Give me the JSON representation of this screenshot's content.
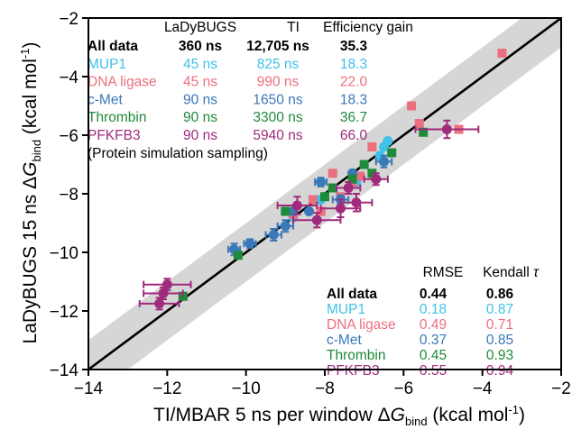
{
  "chart_data": {
    "type": "scatter",
    "xlabel": "TI/MBAR 5 ns per window ΔG_bind (kcal mol-1)",
    "ylabel": "LaDyBUGS 15 ns ΔG_bind (kcal mol-1)",
    "xlim": [
      -14,
      -2
    ],
    "ylim": [
      -14,
      -2
    ],
    "xticks": [
      -14,
      -12,
      -10,
      -8,
      -6,
      -4,
      -2
    ],
    "yticks": [
      -14,
      -12,
      -10,
      -8,
      -6,
      -4,
      -2
    ],
    "xtick_labels": [
      "−14",
      "−12",
      "−10",
      "−8",
      "−6",
      "−4",
      "−2"
    ],
    "ytick_labels": [
      "−14",
      "−12",
      "−10",
      "−8",
      "−6",
      "−4",
      "−2"
    ],
    "grid": false,
    "identity_line": true,
    "band_halfwidth_kcal": 1,
    "colors": {
      "MUP1": "#3fc1e8",
      "DNA ligase": "#ec6f7e",
      "c-Met": "#3a78b8",
      "Thrombin": "#1f8a3b",
      "PFKFB3": "#a02a7c",
      "band": "#d6d6d6",
      "line": "#000000"
    },
    "series": [
      {
        "name": "MUP1",
        "marker": "circle",
        "points": [
          {
            "x": -6.4,
            "y": -6.2
          },
          {
            "x": -6.5,
            "y": -6.4
          },
          {
            "x": -6.6,
            "y": -6.7
          },
          {
            "x": -7.2,
            "y": -7.6
          },
          {
            "x": -8.1,
            "y": -8.2
          },
          {
            "x": -8.8,
            "y": -8.8
          }
        ]
      },
      {
        "name": "DNA ligase",
        "marker": "square",
        "points": [
          {
            "x": -3.5,
            "y": -3.2
          },
          {
            "x": -4.6,
            "y": -5.8
          },
          {
            "x": -5.8,
            "y": -5.0
          },
          {
            "x": -5.6,
            "y": -5.6
          },
          {
            "x": -6.8,
            "y": -6.4
          },
          {
            "x": -7.8,
            "y": -7.3
          },
          {
            "x": -7.3,
            "y": -7.6
          },
          {
            "x": -7.6,
            "y": -8.1
          },
          {
            "x": -8.3,
            "y": -8.2
          },
          {
            "x": -8.1,
            "y": -8.6
          },
          {
            "x": -8.8,
            "y": -8.7
          },
          {
            "x": -7.1,
            "y": -7.4
          }
        ]
      },
      {
        "name": "c-Met",
        "marker": "circle",
        "points": [
          {
            "x": -10.3,
            "y": -9.9,
            "xerr": 0.15,
            "yerr": 0.2
          },
          {
            "x": -9.9,
            "y": -9.7,
            "xerr": 0.15,
            "yerr": 0.15
          },
          {
            "x": -9.3,
            "y": -9.4,
            "xerr": 0.2,
            "yerr": 0.2
          },
          {
            "x": -9.0,
            "y": -9.1,
            "xerr": 0.2,
            "yerr": 0.2
          },
          {
            "x": -8.8,
            "y": -8.6
          },
          {
            "x": -8.4,
            "y": -8.6
          },
          {
            "x": -8.1,
            "y": -7.6,
            "xerr": 0.15,
            "yerr": 0.15
          },
          {
            "x": -7.6,
            "y": -8.2,
            "xerr": 0.2,
            "yerr": 0.15
          },
          {
            "x": -7.3,
            "y": -7.3
          },
          {
            "x": -6.5,
            "y": -6.9,
            "xerr": 0.2,
            "yerr": 0.2
          }
        ]
      },
      {
        "name": "Thrombin",
        "marker": "square",
        "points": [
          {
            "x": -11.6,
            "y": -11.5
          },
          {
            "x": -10.2,
            "y": -10.1
          },
          {
            "x": -9.0,
            "y": -8.6
          },
          {
            "x": -8.0,
            "y": -8.1
          },
          {
            "x": -7.8,
            "y": -7.8
          },
          {
            "x": -7.3,
            "y": -7.5
          },
          {
            "x": -7.0,
            "y": -7.0
          },
          {
            "x": -6.8,
            "y": -7.3
          },
          {
            "x": -6.3,
            "y": -6.6
          },
          {
            "x": -5.5,
            "y": -5.9
          }
        ]
      },
      {
        "name": "PFKFB3",
        "marker": "circle",
        "points": [
          {
            "x": -12.0,
            "y": -11.1,
            "xerr": 0.6,
            "yerr": 0.2
          },
          {
            "x": -12.1,
            "y": -11.4,
            "xerr": 0.5,
            "yerr": 0.2
          },
          {
            "x": -12.2,
            "y": -11.75,
            "xerr": 0.5,
            "yerr": 0.2
          },
          {
            "x": -8.7,
            "y": -8.4,
            "xerr": 0.5,
            "yerr": 0.3
          },
          {
            "x": -8.2,
            "y": -8.9,
            "xerr": 0.6,
            "yerr": 0.25
          },
          {
            "x": -7.6,
            "y": -8.5,
            "xerr": 0.5,
            "yerr": 0.3
          },
          {
            "x": -7.2,
            "y": -8.3,
            "xerr": 0.4,
            "yerr": 0.3
          },
          {
            "x": -7.4,
            "y": -7.8,
            "xerr": 0.3,
            "yerr": 0.2
          },
          {
            "x": -4.9,
            "y": -5.8,
            "xerr": 0.8,
            "yerr": 0.3
          },
          {
            "x": -6.7,
            "y": -7.5,
            "xerr": 0.3,
            "yerr": 0.2
          }
        ]
      }
    ],
    "legend_top": {
      "header": [
        "LaDyBUGS",
        "TI",
        "Efficiency gain"
      ],
      "rows": [
        {
          "label": "All data",
          "ladybugs": "360 ns",
          "ti": "12,705 ns",
          "gain": "35.3",
          "color": "#000000",
          "bold": true
        },
        {
          "label": "MUP1",
          "ladybugs": "45 ns",
          "ti": "825 ns",
          "gain": "18.3",
          "color": "#3fc1e8",
          "bold": false
        },
        {
          "label": "DNA ligase",
          "ladybugs": "45 ns",
          "ti": "990 ns",
          "gain": "22.0",
          "color": "#ec6f7e",
          "bold": false
        },
        {
          "label": "c-Met",
          "ladybugs": "90 ns",
          "ti": "1650 ns",
          "gain": "18.3",
          "color": "#3a78b8",
          "bold": false
        },
        {
          "label": "Thrombin",
          "ladybugs": "90 ns",
          "ti": "3300 ns",
          "gain": "36.7",
          "color": "#1f8a3b",
          "bold": false
        },
        {
          "label": "PFKFB3",
          "ladybugs": "90 ns",
          "ti": "5940 ns",
          "gain": "66.0",
          "color": "#a02a7c",
          "bold": false
        }
      ],
      "note": "(Protein simulation sampling)"
    },
    "legend_bottom": {
      "header": [
        "RMSE",
        "Kendall τ"
      ],
      "rows": [
        {
          "label": "All data",
          "rmse": "0.44",
          "tau": "0.86",
          "color": "#000000",
          "bold": true
        },
        {
          "label": "MUP1",
          "rmse": "0.18",
          "tau": "0.87",
          "color": "#3fc1e8",
          "bold": false
        },
        {
          "label": "DNA ligase",
          "rmse": "0.49",
          "tau": "0.71",
          "color": "#ec6f7e",
          "bold": false
        },
        {
          "label": "c-Met",
          "rmse": "0.37",
          "tau": "0.85",
          "color": "#3a78b8",
          "bold": false
        },
        {
          "label": "Thrombin",
          "rmse": "0.45",
          "tau": "0.93",
          "color": "#1f8a3b",
          "bold": false
        },
        {
          "label": "PFKFB3",
          "rmse": "0.55",
          "tau": "0.94",
          "color": "#a02a7c",
          "bold": false
        }
      ]
    }
  }
}
